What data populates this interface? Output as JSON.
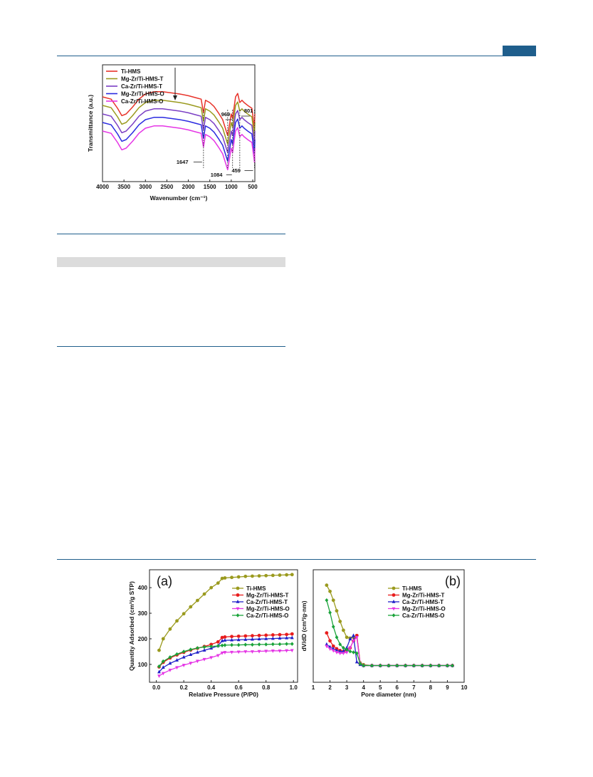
{
  "colors": {
    "rule": "#1f5e8c",
    "badge": "#1f5e8c",
    "shade": "#dcdcdc"
  },
  "chart_data": [
    {
      "type": "line",
      "title": "",
      "xlabel": "Wavenumber (cm⁻¹)",
      "ylabel": "Transmittance (a.u.)",
      "xlim": [
        4000,
        450
      ],
      "x_reversed": true,
      "x_ticks": [
        4000,
        3500,
        3000,
        2500,
        2000,
        1500,
        1000,
        500
      ],
      "legend_position": "top-left",
      "annotations": [
        "1647",
        "1084",
        "969",
        "801",
        "459"
      ],
      "x": [
        4000,
        3800,
        3650,
        3550,
        3450,
        3300,
        3150,
        3000,
        2800,
        2600,
        2400,
        2200,
        2000,
        1800,
        1700,
        1647,
        1600,
        1500,
        1400,
        1300,
        1200,
        1084,
        1000,
        969,
        900,
        850,
        801,
        750,
        700,
        600,
        520,
        459,
        450
      ],
      "series": [
        {
          "name": "Ti-HMS",
          "color": "#e8332a",
          "values": [
            0.0,
            -0.04,
            -0.2,
            -0.33,
            -0.3,
            -0.18,
            -0.04,
            0.05,
            0.09,
            0.09,
            0.07,
            0.05,
            0.02,
            -0.02,
            -0.04,
            -0.28,
            -0.06,
            -0.1,
            -0.17,
            -0.28,
            -0.4,
            -0.68,
            -0.3,
            -0.38,
            0.0,
            0.06,
            -0.1,
            -0.06,
            -0.1,
            -0.16,
            -0.2,
            -0.55,
            -0.3
          ]
        },
        {
          "name": "Mg-Zr/Ti-HMS-T",
          "color": "#9a9a1e",
          "values": [
            -0.15,
            -0.19,
            -0.35,
            -0.48,
            -0.45,
            -0.33,
            -0.19,
            -0.1,
            -0.06,
            -0.06,
            -0.08,
            -0.1,
            -0.13,
            -0.17,
            -0.19,
            -0.43,
            -0.21,
            -0.25,
            -0.32,
            -0.43,
            -0.55,
            -0.83,
            -0.45,
            -0.53,
            -0.15,
            -0.09,
            -0.25,
            -0.21,
            -0.25,
            -0.31,
            -0.35,
            -0.7,
            -0.45
          ]
        },
        {
          "name": "Ca-Zr/Ti-HMS-T",
          "color": "#7b3fc4",
          "values": [
            -0.3,
            -0.34,
            -0.5,
            -0.63,
            -0.6,
            -0.48,
            -0.34,
            -0.25,
            -0.21,
            -0.21,
            -0.23,
            -0.25,
            -0.28,
            -0.32,
            -0.34,
            -0.58,
            -0.36,
            -0.4,
            -0.47,
            -0.58,
            -0.7,
            -0.98,
            -0.6,
            -0.68,
            -0.3,
            -0.24,
            -0.4,
            -0.36,
            -0.4,
            -0.46,
            -0.5,
            -0.85,
            -0.6
          ]
        },
        {
          "name": "Mg-Zr/Ti-HMS-O",
          "color": "#2a2ae0",
          "values": [
            -0.45,
            -0.49,
            -0.65,
            -0.78,
            -0.75,
            -0.63,
            -0.49,
            -0.4,
            -0.36,
            -0.36,
            -0.38,
            -0.4,
            -0.43,
            -0.47,
            -0.49,
            -0.73,
            -0.51,
            -0.55,
            -0.62,
            -0.73,
            -0.85,
            -1.13,
            -0.75,
            -0.83,
            -0.45,
            -0.39,
            -0.55,
            -0.51,
            -0.55,
            -0.61,
            -0.65,
            -1.0,
            -0.75
          ]
        },
        {
          "name": "Ca-Zr/Ti-HMS-O",
          "color": "#e535e5",
          "values": [
            -0.6,
            -0.64,
            -0.8,
            -0.93,
            -0.9,
            -0.78,
            -0.64,
            -0.55,
            -0.51,
            -0.51,
            -0.53,
            -0.55,
            -0.58,
            -0.62,
            -0.64,
            -0.88,
            -0.66,
            -0.7,
            -0.77,
            -0.88,
            -1.0,
            -1.28,
            -0.9,
            -0.98,
            -0.6,
            -0.54,
            -0.7,
            -0.66,
            -0.7,
            -0.76,
            -0.8,
            -1.15,
            -0.9
          ]
        }
      ]
    },
    {
      "type": "line",
      "panel_label": "(a)",
      "xlabel": "Relative Pressure (P/P0)",
      "ylabel": "Quantity Adsorbed (cm³/g STP)",
      "xlim": [
        -0.05,
        1.03
      ],
      "ylim": [
        30,
        470
      ],
      "x_ticks": [
        "0.0",
        "0.2",
        "0.4",
        "0.6",
        "0.8",
        "1.0"
      ],
      "y_ticks": [
        100,
        200,
        300,
        400
      ],
      "legend_position": "center-right",
      "x": [
        0.02,
        0.05,
        0.1,
        0.15,
        0.2,
        0.25,
        0.3,
        0.35,
        0.4,
        0.45,
        0.48,
        0.5,
        0.55,
        0.6,
        0.65,
        0.7,
        0.75,
        0.8,
        0.85,
        0.9,
        0.95,
        0.99
      ],
      "series": [
        {
          "name": "Ti-HMS",
          "color": "#9a9a1e",
          "marker": "circle",
          "values": [
            155,
            200,
            238,
            270,
            298,
            325,
            350,
            375,
            400,
            418,
            436,
            438,
            440,
            442,
            444,
            445,
            446,
            447,
            448,
            449,
            450,
            451
          ]
        },
        {
          "name": "Mg-Zr/Ti-HMS-T",
          "color": "#e81c1c",
          "marker": "circle",
          "values": [
            90,
            108,
            125,
            137,
            147,
            156,
            163,
            170,
            178,
            188,
            205,
            207,
            209,
            210,
            211,
            212,
            213,
            214,
            215,
            216,
            217,
            219
          ]
        },
        {
          "name": "Ca-Zr/Ti-HMS-T",
          "color": "#2020c8",
          "marker": "triangle",
          "values": [
            70,
            88,
            104,
            116,
            128,
            138,
            147,
            155,
            163,
            173,
            192,
            194,
            195,
            196,
            197,
            198,
            199,
            200,
            201,
            202,
            203,
            204
          ]
        },
        {
          "name": "Mg-Zr/Ti-HMS-O",
          "color": "#e535e5",
          "marker": "triangle-down",
          "values": [
            55,
            65,
            78,
            88,
            97,
            105,
            113,
            120,
            127,
            135,
            145,
            147,
            148,
            149,
            150,
            150,
            151,
            152,
            153,
            153,
            154,
            155
          ]
        },
        {
          "name": "Ca-Zr/Ti-HMS-O",
          "color": "#1aa33a",
          "marker": "diamond",
          "values": [
            92,
            112,
            128,
            140,
            150,
            158,
            164,
            168,
            170,
            172,
            174,
            175,
            176,
            176,
            177,
            177,
            178,
            178,
            179,
            179,
            180,
            180
          ]
        }
      ]
    },
    {
      "type": "line",
      "panel_label": "(b)",
      "xlabel": "Pore diameter (nm)",
      "ylabel": "dV/dD (cm³/g·nm)",
      "xlim": [
        1,
        10
      ],
      "x_ticks": [
        "1",
        "2",
        "3",
        "4",
        "5",
        "6",
        "7",
        "8",
        "9",
        "10"
      ],
      "legend_position": "top-right",
      "x": [
        1.8,
        2.0,
        2.2,
        2.4,
        2.6,
        2.8,
        3.0,
        3.2,
        3.4,
        3.6,
        3.8,
        4.0,
        4.5,
        5.0,
        5.5,
        6.0,
        6.5,
        7.0,
        7.5,
        8.0,
        8.5,
        9.0,
        9.3
      ],
      "series": [
        {
          "name": "Ti-HMS",
          "color": "#9a9a1e",
          "marker": "circle",
          "values": [
            0.93,
            0.86,
            0.76,
            0.64,
            0.52,
            0.42,
            0.34,
            0.33,
            0.34,
            0.36,
            0.05,
            0.03,
            0.02,
            0.02,
            0.02,
            0.02,
            0.02,
            0.02,
            0.02,
            0.02,
            0.02,
            0.02,
            0.02
          ]
        },
        {
          "name": "Mg-Zr/Ti-HMS-T",
          "color": "#e81c1c",
          "marker": "circle",
          "values": [
            0.39,
            0.3,
            0.24,
            0.21,
            0.19,
            0.18,
            0.19,
            0.22,
            0.3,
            0.36,
            0.04,
            0.02,
            0.02,
            0.02,
            0.02,
            0.02,
            0.02,
            0.02,
            0.02,
            0.02,
            0.02,
            0.02,
            0.02
          ]
        },
        {
          "name": "Ca-Zr/Ti-HMS-T",
          "color": "#2020c8",
          "marker": "triangle",
          "values": [
            0.26,
            0.23,
            0.21,
            0.19,
            0.18,
            0.18,
            0.22,
            0.32,
            0.36,
            0.06,
            0.03,
            0.02,
            0.02,
            0.02,
            0.02,
            0.02,
            0.02,
            0.02,
            0.02,
            0.02,
            0.02,
            0.02,
            0.02
          ]
        },
        {
          "name": "Mg-Zr/Ti-HMS-O",
          "color": "#e535e5",
          "marker": "triangle-down",
          "values": [
            0.24,
            0.21,
            0.19,
            0.17,
            0.16,
            0.16,
            0.17,
            0.22,
            0.3,
            0.34,
            0.04,
            0.02,
            0.02,
            0.02,
            0.02,
            0.02,
            0.02,
            0.02,
            0.02,
            0.02,
            0.02,
            0.02,
            0.02
          ]
        },
        {
          "name": "Ca-Zr/Ti-HMS-O",
          "color": "#1aa33a",
          "marker": "diamond",
          "values": [
            0.76,
            0.62,
            0.46,
            0.34,
            0.26,
            0.22,
            0.2,
            0.18,
            0.17,
            0.16,
            0.04,
            0.02,
            0.02,
            0.02,
            0.02,
            0.02,
            0.02,
            0.02,
            0.02,
            0.02,
            0.02,
            0.02,
            0.02
          ]
        }
      ]
    }
  ]
}
